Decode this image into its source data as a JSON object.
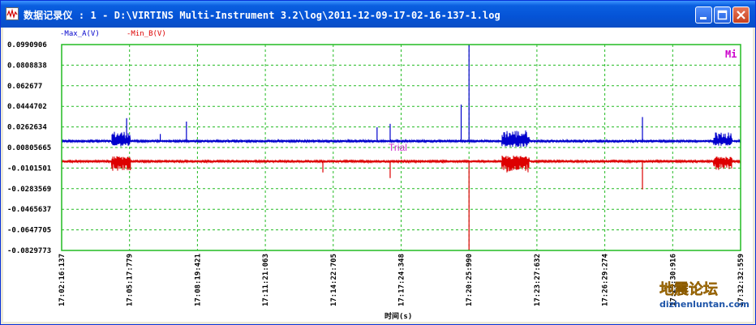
{
  "window": {
    "title": "数据记录仪 : 1 - D:\\VIRTINS Multi-Instrument 3.2\\log\\2011-12-09-17-02-16-137-1.log",
    "buttons": {
      "minimize": "minimize-icon",
      "maximize": "maximize-icon",
      "close": "close-icon"
    }
  },
  "legend": {
    "series_a": "-Max_A(V)",
    "series_b": "-Min_B(V)"
  },
  "badges": {
    "mi": "Mi",
    "trial": "Trial"
  },
  "watermark": {
    "main": "地震论坛",
    "url": "dizhenluntan.com"
  },
  "colors": {
    "series_a": "#0000cc",
    "series_b": "#dd0000",
    "grid": "#22bb22",
    "badge": "#cc00cc"
  },
  "chart_data": {
    "type": "line",
    "xlabel": "时间(s)",
    "ylabel": "",
    "title": "",
    "x_tick_labels": [
      "17:02:16:137",
      "17:05:17:779",
      "17:08:19:421",
      "17:11:21:063",
      "17:14:22:705",
      "17:17:24:348",
      "17:20:25:990",
      "17:23:27:632",
      "17:26:29:274",
      "17:29:30:916",
      "17:32:32:559"
    ],
    "y_tick_labels": [
      "0.0990906",
      "0.0808838",
      "0.062677",
      "0.0444702",
      "0.0262634",
      "0.00805665",
      "-0.0101501",
      "-0.0283569",
      "-0.0465637",
      "-0.0647705",
      "-0.0829773"
    ],
    "ylim": [
      -0.0829773,
      0.0990906
    ],
    "xlim": [
      "17:02:16:137",
      "17:32:32:559"
    ],
    "grid": true,
    "series": [
      {
        "name": "-Max_A(V)",
        "baseline": 0.0135,
        "noise": 0.0012,
        "bursts": [
          {
            "t": "17:04:55",
            "dur_s": 50,
            "amp": 0.009
          },
          {
            "t": "17:22:30",
            "dur_s": 75,
            "amp": 0.01
          },
          {
            "t": "17:31:45",
            "dur_s": 50,
            "amp": 0.008
          }
        ],
        "spikes": [
          {
            "t": "17:05:10",
            "value": 0.034
          },
          {
            "t": "17:06:40",
            "value": 0.02
          },
          {
            "t": "17:07:50",
            "value": 0.031
          },
          {
            "t": "17:16:20",
            "value": 0.026
          },
          {
            "t": "17:16:55",
            "value": 0.029
          },
          {
            "t": "17:20:05",
            "value": 0.046
          },
          {
            "t": "17:20:26",
            "value": 0.0990906
          },
          {
            "t": "17:28:10",
            "value": 0.035
          }
        ]
      },
      {
        "name": "-Min_B(V)",
        "baseline": -0.004,
        "noise": 0.0012,
        "bursts": [
          {
            "t": "17:04:55",
            "dur_s": 50,
            "amp": 0.009
          },
          {
            "t": "17:22:30",
            "dur_s": 75,
            "amp": 0.01
          },
          {
            "t": "17:31:45",
            "dur_s": 50,
            "amp": 0.008
          }
        ],
        "spikes": [
          {
            "t": "17:05:20",
            "value": -0.012
          },
          {
            "t": "17:13:55",
            "value": -0.014
          },
          {
            "t": "17:16:55",
            "value": -0.019
          },
          {
            "t": "17:20:26",
            "value": -0.0829773
          },
          {
            "t": "17:28:10",
            "value": -0.029
          }
        ]
      }
    ]
  }
}
